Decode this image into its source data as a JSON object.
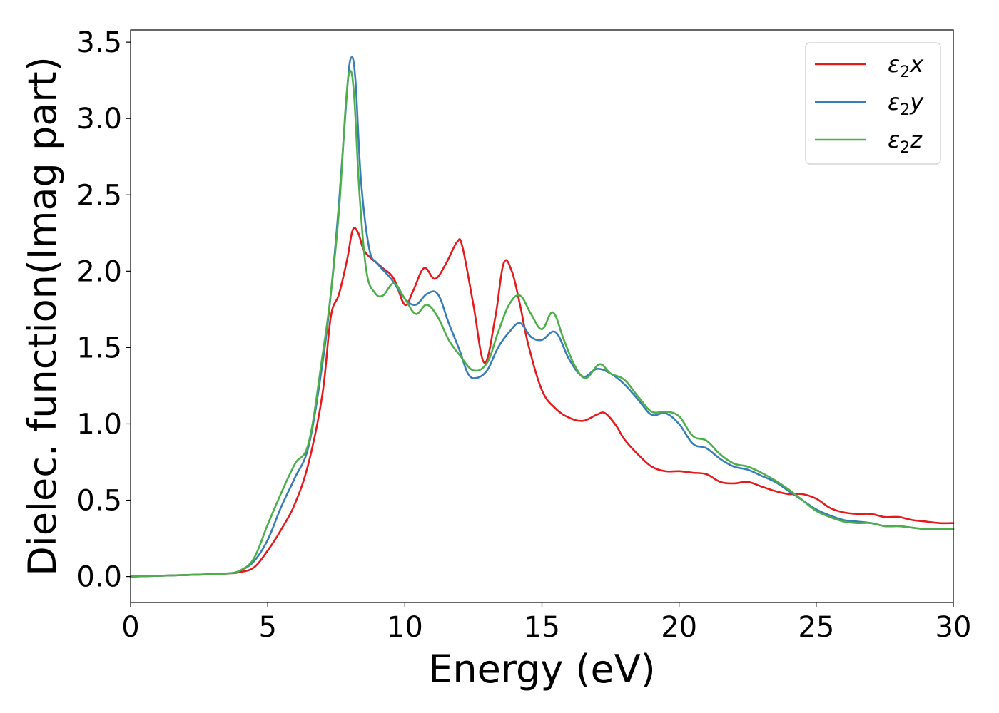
{
  "chart_data": {
    "type": "line",
    "title": "",
    "xlabel": "Energy (eV)",
    "ylabel": "Dielec. function(Imag part)",
    "xlim": [
      0,
      30
    ],
    "ylim": [
      -0.17,
      3.58
    ],
    "xticks": [
      0,
      5,
      10,
      15,
      20,
      25,
      30
    ],
    "xtick_labels": [
      "0",
      "5",
      "10",
      "15",
      "20",
      "25",
      "30"
    ],
    "yticks": [
      0.0,
      0.5,
      1.0,
      1.5,
      2.0,
      2.5,
      3.0,
      3.5
    ],
    "ytick_labels": [
      "0.0",
      "0.5",
      "1.0",
      "1.5",
      "2.0",
      "2.5",
      "3.0",
      "3.5"
    ],
    "grid": false,
    "legend_position": "top-right",
    "series": [
      {
        "name": "ε₂x",
        "legend_base": "ε",
        "legend_sub": "2",
        "legend_suffix": "x",
        "color": "#e41a1c",
        "x": [
          0,
          2,
          3.5,
          4.0,
          4.5,
          5.0,
          5.5,
          6.0,
          6.5,
          7.0,
          7.3,
          7.6,
          7.9,
          8.1,
          8.3,
          8.5,
          8.8,
          9.2,
          9.6,
          10.0,
          10.3,
          10.7,
          11.1,
          11.5,
          11.9,
          12.1,
          12.5,
          12.9,
          13.3,
          13.6,
          13.9,
          14.2,
          14.5,
          15.0,
          15.5,
          16.0,
          16.5,
          17.0,
          17.3,
          17.7,
          18.0,
          18.5,
          19.0,
          19.5,
          20.0,
          20.5,
          21.0,
          21.5,
          22.0,
          22.5,
          23.0,
          23.5,
          24.0,
          24.5,
          25.0,
          25.5,
          26.0,
          26.5,
          27.0,
          27.5,
          28.0,
          28.5,
          29.0,
          29.5,
          30.0
        ],
        "y": [
          0.0,
          0.01,
          0.02,
          0.03,
          0.06,
          0.17,
          0.31,
          0.48,
          0.75,
          1.2,
          1.7,
          1.85,
          2.08,
          2.27,
          2.25,
          2.14,
          2.08,
          2.02,
          1.95,
          1.78,
          1.87,
          2.02,
          1.95,
          2.05,
          2.19,
          2.16,
          1.78,
          1.4,
          1.7,
          2.05,
          2.0,
          1.78,
          1.52,
          1.22,
          1.1,
          1.04,
          1.02,
          1.06,
          1.07,
          0.99,
          0.9,
          0.8,
          0.72,
          0.69,
          0.69,
          0.68,
          0.67,
          0.62,
          0.61,
          0.62,
          0.59,
          0.56,
          0.54,
          0.54,
          0.51,
          0.45,
          0.42,
          0.41,
          0.41,
          0.39,
          0.39,
          0.37,
          0.36,
          0.35,
          0.35
        ]
      },
      {
        "name": "ε₂y",
        "legend_base": "ε",
        "legend_sub": "2",
        "legend_suffix": "y",
        "color": "#377eb8",
        "x": [
          0,
          2,
          3.5,
          4.0,
          4.5,
          5.0,
          5.5,
          6.0,
          6.5,
          7.0,
          7.3,
          7.6,
          7.9,
          8.05,
          8.2,
          8.4,
          8.7,
          9.0,
          9.5,
          10.0,
          10.4,
          10.8,
          11.2,
          11.6,
          12.0,
          12.3,
          12.6,
          13.0,
          13.4,
          13.8,
          14.2,
          14.6,
          15.0,
          15.5,
          16.0,
          16.5,
          17.0,
          17.5,
          18.0,
          18.5,
          19.0,
          19.5,
          20.0,
          20.5,
          21.0,
          21.5,
          22.0,
          22.5,
          23.0,
          23.5,
          24.0,
          24.5,
          25.0,
          25.5,
          26.0,
          26.5,
          27.0,
          27.5,
          28.0,
          28.5,
          29.0,
          29.5,
          30.0
        ],
        "y": [
          0.0,
          0.01,
          0.02,
          0.04,
          0.1,
          0.24,
          0.46,
          0.65,
          0.86,
          1.4,
          1.85,
          2.45,
          3.2,
          3.4,
          3.25,
          2.6,
          2.15,
          2.05,
          1.95,
          1.82,
          1.78,
          1.85,
          1.85,
          1.66,
          1.48,
          1.33,
          1.3,
          1.35,
          1.5,
          1.6,
          1.66,
          1.57,
          1.55,
          1.6,
          1.42,
          1.31,
          1.36,
          1.33,
          1.26,
          1.16,
          1.06,
          1.07,
          1.0,
          0.87,
          0.84,
          0.77,
          0.72,
          0.7,
          0.66,
          0.62,
          0.56,
          0.5,
          0.44,
          0.4,
          0.37,
          0.36,
          0.35,
          0.33,
          0.33,
          0.32,
          0.31,
          0.31,
          0.31
        ]
      },
      {
        "name": "ε₂z",
        "legend_base": "ε",
        "legend_sub": "2",
        "legend_suffix": "z",
        "color": "#4daf4a",
        "x": [
          0,
          2,
          3.5,
          4.0,
          4.5,
          5.0,
          5.5,
          6.0,
          6.5,
          7.0,
          7.3,
          7.6,
          7.85,
          8.0,
          8.15,
          8.35,
          8.6,
          8.9,
          9.2,
          9.6,
          10.0,
          10.4,
          10.8,
          11.2,
          11.6,
          12.0,
          12.5,
          13.0,
          13.4,
          13.8,
          14.2,
          14.6,
          15.0,
          15.4,
          15.8,
          16.2,
          16.6,
          17.1,
          17.5,
          18.0,
          18.5,
          19.0,
          19.5,
          20.0,
          20.5,
          21.0,
          21.5,
          22.0,
          22.5,
          23.0,
          23.5,
          24.0,
          24.5,
          25.0,
          25.5,
          26.0,
          26.5,
          27.0,
          27.5,
          28.0,
          28.5,
          29.0,
          29.5,
          30.0
        ],
        "y": [
          0.0,
          0.01,
          0.02,
          0.04,
          0.12,
          0.34,
          0.55,
          0.74,
          0.88,
          1.45,
          1.85,
          2.4,
          3.1,
          3.31,
          3.15,
          2.5,
          2.0,
          1.86,
          1.84,
          1.92,
          1.82,
          1.72,
          1.78,
          1.7,
          1.55,
          1.45,
          1.35,
          1.4,
          1.6,
          1.78,
          1.84,
          1.72,
          1.62,
          1.73,
          1.55,
          1.38,
          1.3,
          1.39,
          1.33,
          1.29,
          1.18,
          1.08,
          1.08,
          1.05,
          0.92,
          0.89,
          0.8,
          0.74,
          0.72,
          0.68,
          0.63,
          0.57,
          0.5,
          0.43,
          0.39,
          0.36,
          0.35,
          0.35,
          0.33,
          0.33,
          0.32,
          0.31,
          0.31,
          0.31
        ]
      }
    ]
  }
}
